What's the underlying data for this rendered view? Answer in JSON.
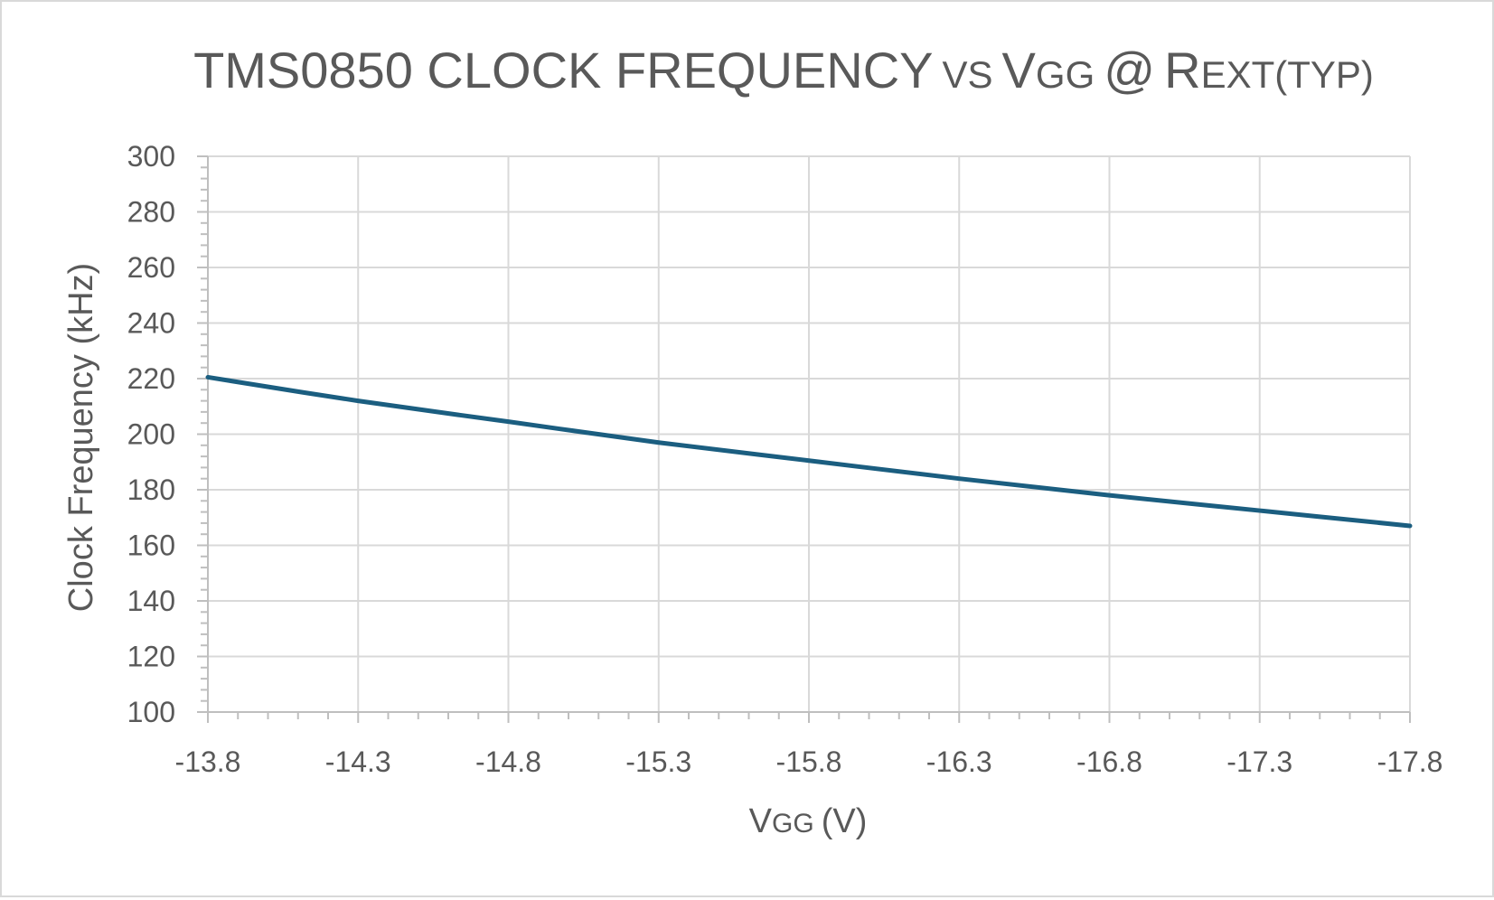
{
  "chart_data": {
    "type": "line",
    "title": {
      "main": "TMS0850 CLOCK FREQUENCY",
      "vs": "VS",
      "v": "V",
      "gg": "GG",
      "at": "@",
      "r": "R",
      "ext": "EXT(TYP)"
    },
    "xlabel": {
      "v": "V",
      "gg": "GG",
      "unit": "(V)"
    },
    "ylabel": "Clock Frequency (kHz)",
    "x_ticks": [
      "-13.8",
      "-14.3",
      "-14.8",
      "-15.3",
      "-15.8",
      "-16.3",
      "-16.8",
      "-17.3",
      "-17.8"
    ],
    "y_ticks": [
      "100",
      "120",
      "140",
      "160",
      "180",
      "200",
      "220",
      "240",
      "260",
      "280",
      "300"
    ],
    "xlim": [
      -13.8,
      -17.8
    ],
    "ylim": [
      100,
      300
    ],
    "grid": true,
    "legend": "none",
    "series": [
      {
        "color": "#1b5e80",
        "x": [
          -13.8,
          -14.3,
          -14.8,
          -15.3,
          -15.8,
          -16.3,
          -16.8,
          -17.3,
          -17.8
        ],
        "y": [
          220.5,
          212,
          204.5,
          197,
          190.5,
          184,
          178,
          172.5,
          167
        ]
      }
    ]
  }
}
